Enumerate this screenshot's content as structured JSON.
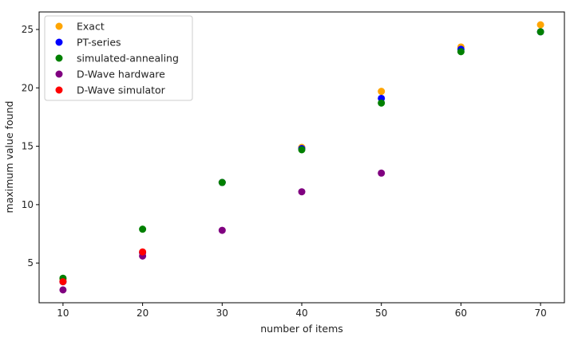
{
  "chart_data": {
    "type": "scatter",
    "xlabel": "number of items",
    "ylabel": "maximum value found",
    "xlim": [
      7,
      73
    ],
    "ylim": [
      1.6,
      26.5
    ],
    "xticks": [
      10,
      20,
      30,
      40,
      50,
      60,
      70
    ],
    "yticks": [
      5,
      10,
      15,
      20,
      25
    ],
    "grid": false,
    "legend_position": "top-left",
    "series": [
      {
        "name": "Exact",
        "color": "#ffa500",
        "points": [
          [
            10,
            3.6
          ],
          [
            20,
            5.9
          ],
          [
            30,
            11.9
          ],
          [
            40,
            14.9
          ],
          [
            50,
            19.7
          ],
          [
            60,
            23.5
          ],
          [
            70,
            25.4
          ]
        ]
      },
      {
        "name": "PT-series",
        "color": "#0000ff",
        "points": [
          [
            10,
            3.4
          ],
          [
            20,
            5.9
          ],
          [
            30,
            11.9
          ],
          [
            40,
            14.8
          ],
          [
            50,
            19.1
          ],
          [
            60,
            23.3
          ],
          [
            70,
            24.8
          ]
        ]
      },
      {
        "name": "simulated-annealing",
        "color": "#008000",
        "points": [
          [
            10,
            3.7
          ],
          [
            20,
            7.9
          ],
          [
            30,
            11.9
          ],
          [
            40,
            14.7
          ],
          [
            50,
            18.7
          ],
          [
            60,
            23.1
          ],
          [
            70,
            24.8
          ]
        ]
      },
      {
        "name": "D-Wave hardware",
        "color": "#800080",
        "points": [
          [
            10,
            2.7
          ],
          [
            20,
            5.6
          ],
          [
            30,
            7.8
          ],
          [
            40,
            11.1
          ],
          [
            50,
            12.7
          ]
        ]
      },
      {
        "name": "D-Wave simulator",
        "color": "#ff0000",
        "points": [
          [
            10,
            3.4
          ],
          [
            20,
            5.95
          ]
        ]
      }
    ]
  }
}
